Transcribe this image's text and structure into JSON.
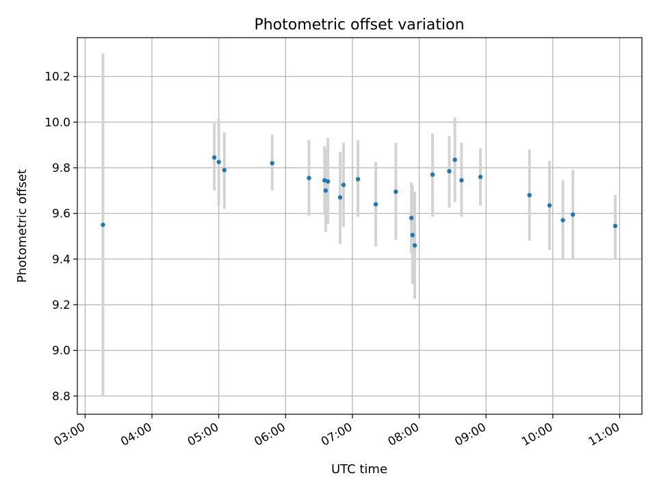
{
  "chart_data": {
    "type": "scatter",
    "title": "Photometric offset variation",
    "xlabel": "UTC time",
    "ylabel": "Photometric offset",
    "x_tick_labels": [
      "03:00",
      "04:00",
      "05:00",
      "06:00",
      "07:00",
      "08:00",
      "09:00",
      "10:00",
      "11:00"
    ],
    "y_tick_labels": [
      "8.8",
      "9.0",
      "9.2",
      "9.4",
      "9.6",
      "9.8",
      "10.0",
      "10.2"
    ],
    "xlim": [
      "02:53",
      "11:20"
    ],
    "ylim": [
      8.72,
      10.37
    ],
    "grid": true,
    "colors": {
      "points": "#1f77b4",
      "error_bars": "#d3d3d3",
      "grid": "#b0b0b0"
    },
    "points": [
      {
        "x": "03:16",
        "y": 9.55,
        "err_low": 8.8,
        "err_high": 10.3
      },
      {
        "x": "04:56",
        "y": 9.845,
        "err_low": 9.7,
        "err_high": 9.995
      },
      {
        "x": "05:00",
        "y": 9.825,
        "err_low": 9.635,
        "err_high": 10.015
      },
      {
        "x": "05:05",
        "y": 9.79,
        "err_low": 9.62,
        "err_high": 9.955
      },
      {
        "x": "05:48",
        "y": 9.82,
        "err_low": 9.7,
        "err_high": 9.945
      },
      {
        "x": "06:21",
        "y": 9.755,
        "err_low": 9.59,
        "err_high": 9.92
      },
      {
        "x": "06:35",
        "y": 9.745,
        "err_low": 9.595,
        "err_high": 9.895
      },
      {
        "x": "06:36",
        "y": 9.7,
        "err_low": 9.52,
        "err_high": 9.88
      },
      {
        "x": "06:38",
        "y": 9.74,
        "err_low": 9.555,
        "err_high": 9.93
      },
      {
        "x": "06:49",
        "y": 9.67,
        "err_low": 9.465,
        "err_high": 9.87
      },
      {
        "x": "06:52",
        "y": 9.725,
        "err_low": 9.54,
        "err_high": 9.91
      },
      {
        "x": "07:05",
        "y": 9.75,
        "err_low": 9.585,
        "err_high": 9.92
      },
      {
        "x": "07:21",
        "y": 9.64,
        "err_low": 9.455,
        "err_high": 9.825
      },
      {
        "x": "07:39",
        "y": 9.695,
        "err_low": 9.485,
        "err_high": 9.91
      },
      {
        "x": "07:53",
        "y": 9.58,
        "err_low": 9.425,
        "err_high": 9.735
      },
      {
        "x": "07:54",
        "y": 9.505,
        "err_low": 9.29,
        "err_high": 9.72
      },
      {
        "x": "07:56",
        "y": 9.46,
        "err_low": 9.225,
        "err_high": 9.695
      },
      {
        "x": "08:12",
        "y": 9.77,
        "err_low": 9.585,
        "err_high": 9.95
      },
      {
        "x": "08:27",
        "y": 9.785,
        "err_low": 9.625,
        "err_high": 9.94
      },
      {
        "x": "08:32",
        "y": 9.835,
        "err_low": 9.65,
        "err_high": 10.02
      },
      {
        "x": "08:38",
        "y": 9.745,
        "err_low": 9.585,
        "err_high": 9.91
      },
      {
        "x": "08:55",
        "y": 9.76,
        "err_low": 9.635,
        "err_high": 9.885
      },
      {
        "x": "09:39",
        "y": 9.68,
        "err_low": 9.48,
        "err_high": 9.88
      },
      {
        "x": "09:57",
        "y": 9.635,
        "err_low": 9.44,
        "err_high": 9.83
      },
      {
        "x": "10:09",
        "y": 9.57,
        "err_low": 9.4,
        "err_high": 9.745
      },
      {
        "x": "10:18",
        "y": 9.595,
        "err_low": 9.4,
        "err_high": 9.79
      },
      {
        "x": "10:56",
        "y": 9.545,
        "err_low": 9.4,
        "err_high": 9.68
      }
    ]
  }
}
